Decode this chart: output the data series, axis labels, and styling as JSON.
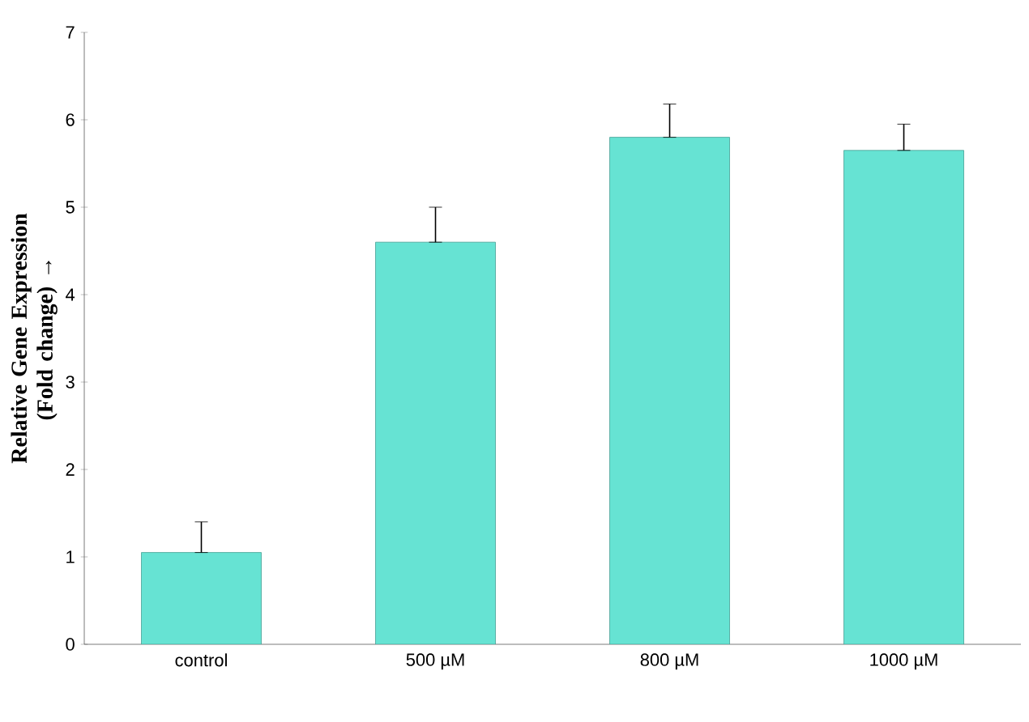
{
  "chart_data": {
    "type": "bar",
    "ylabel": "Relative Gene Expression (Fold change) →",
    "categories": [
      "control",
      "500 µM",
      "800 µM",
      "1000 µM"
    ],
    "values": [
      1.05,
      4.6,
      5.8,
      5.65
    ],
    "errors": [
      [
        1.05,
        1.4
      ],
      [
        4.6,
        5.0
      ],
      [
        5.8,
        6.18
      ],
      [
        5.65,
        5.95
      ]
    ],
    "color": "#66e3d3",
    "ylim": [
      0,
      7
    ],
    "yticks": [
      0,
      1,
      2,
      3,
      4,
      5,
      6,
      7
    ],
    "grid": false
  }
}
